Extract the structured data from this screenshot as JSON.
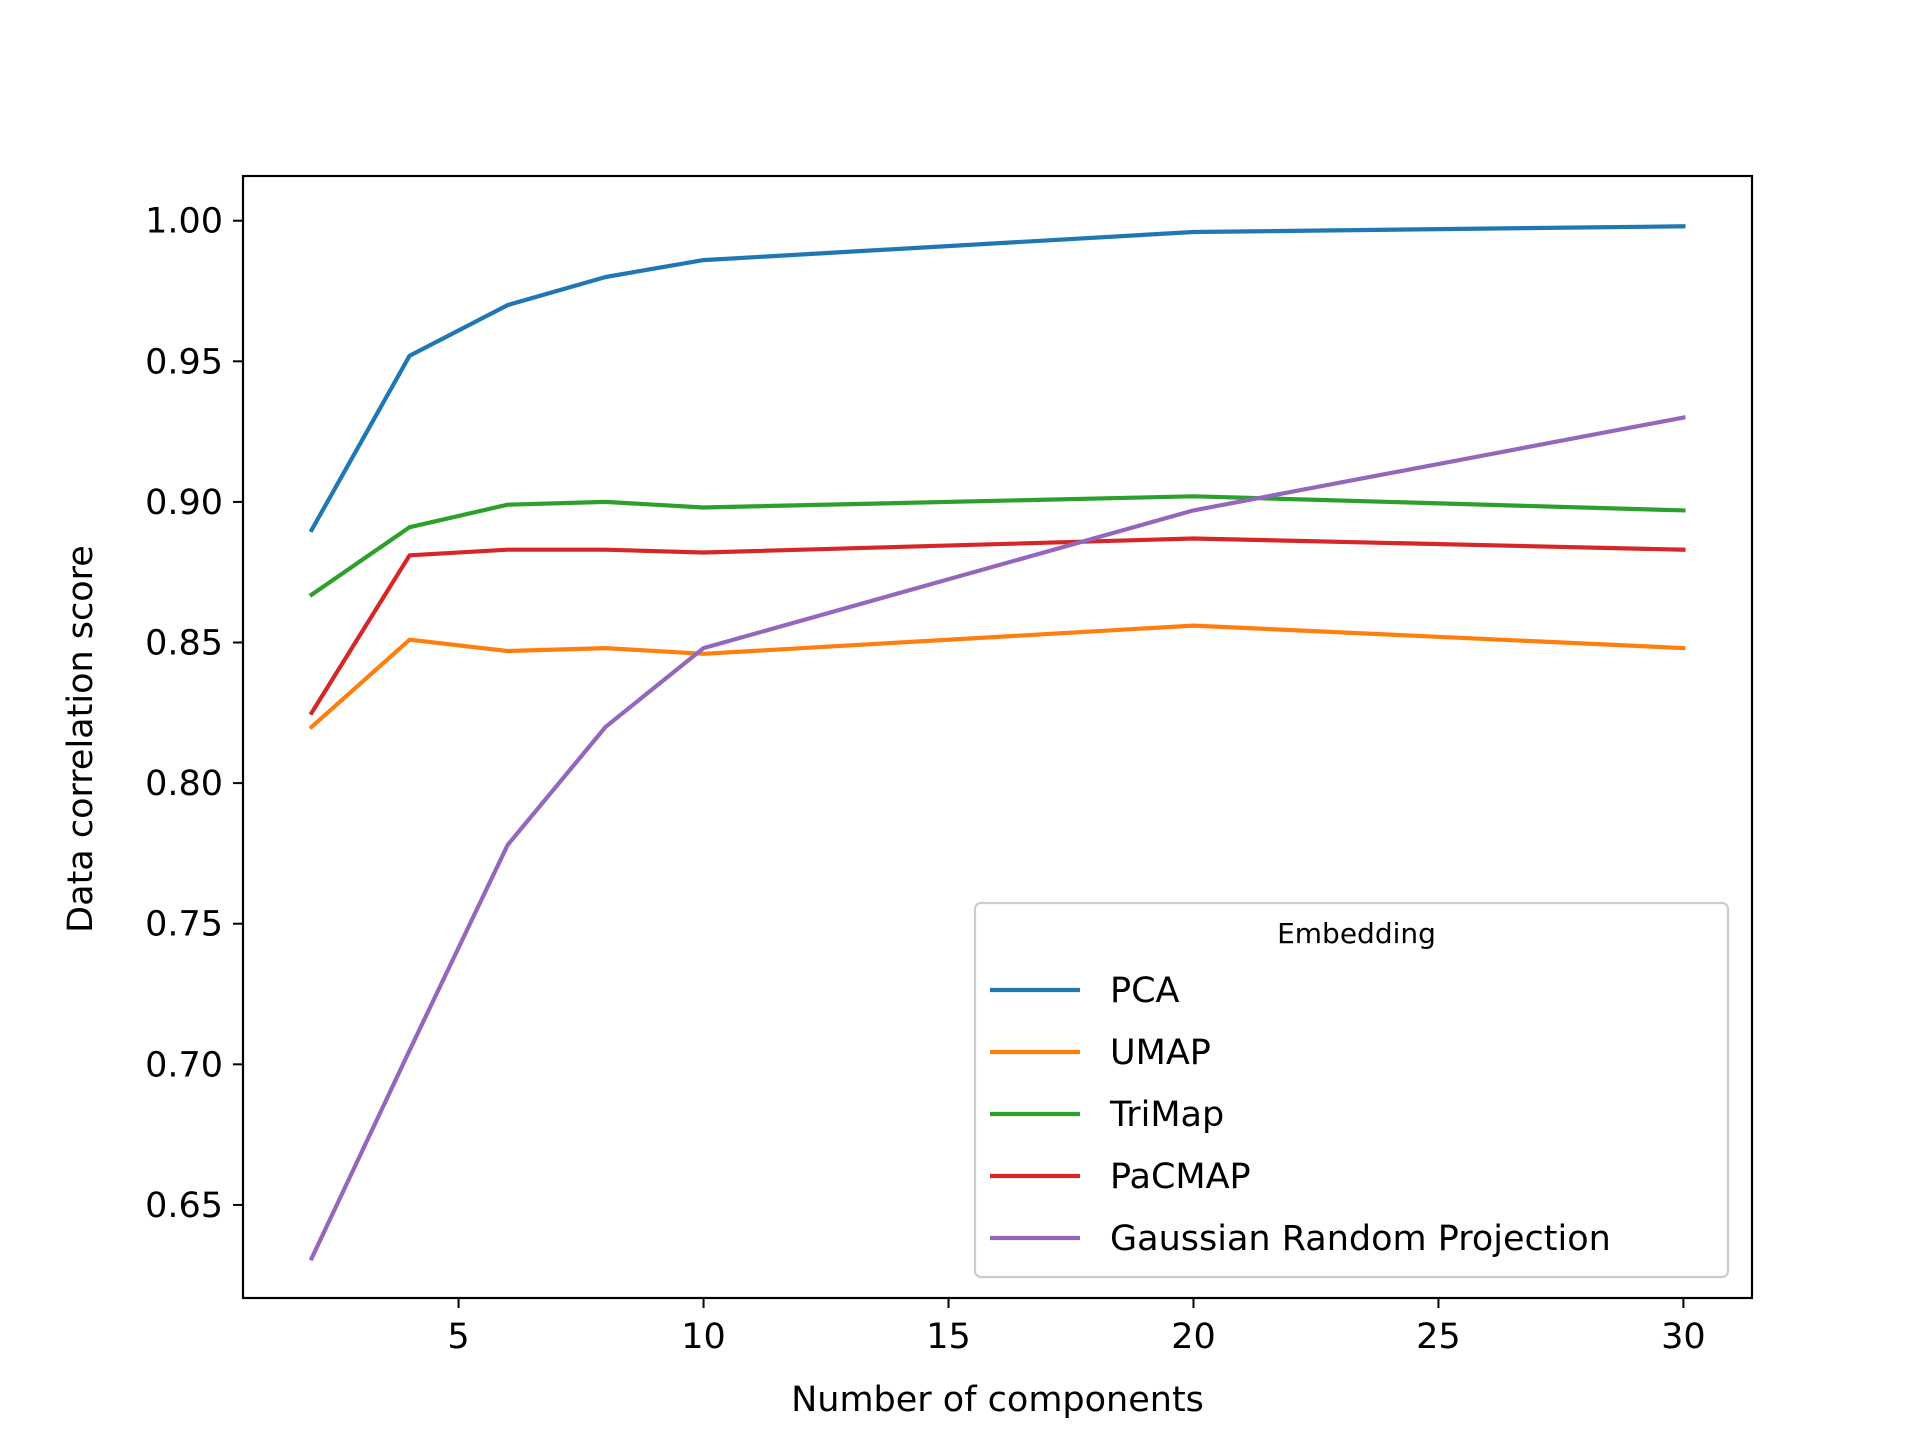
{
  "chart_data": {
    "type": "line",
    "xlabel": "Number of components",
    "ylabel": "Data correlation score",
    "xlim": [
      0.6,
      31.4
    ],
    "ylim": [
      0.6169,
      1.0159
    ],
    "xticks": [
      5,
      10,
      15,
      20,
      25,
      30
    ],
    "xtick_labels": [
      "5",
      "10",
      "15",
      "20",
      "25",
      "30"
    ],
    "yticks": [
      0.65,
      0.7,
      0.75,
      0.8,
      0.85,
      0.9,
      0.95,
      1.0
    ],
    "ytick_labels": [
      "0.65",
      "0.70",
      "0.75",
      "0.80",
      "0.85",
      "0.90",
      "0.95",
      "1.00"
    ],
    "grid": false,
    "legend": {
      "title": "Embedding",
      "placement": "lower-right"
    },
    "x": [
      2,
      4,
      6,
      8,
      10,
      20,
      30
    ],
    "series": [
      {
        "name": "PCA",
        "color": "#1f77b4",
        "values": [
          0.89,
          0.952,
          0.97,
          0.98,
          0.986,
          0.996,
          0.998
        ]
      },
      {
        "name": "UMAP",
        "color": "#ff7f0e",
        "values": [
          0.82,
          0.851,
          0.847,
          0.848,
          0.846,
          0.856,
          0.848
        ]
      },
      {
        "name": "TriMap",
        "color": "#2ca02c",
        "values": [
          0.867,
          0.891,
          0.899,
          0.9,
          0.898,
          0.902,
          0.897
        ]
      },
      {
        "name": "PaCMAP",
        "color": "#d62728",
        "values": [
          0.825,
          0.881,
          0.883,
          0.883,
          0.882,
          0.887,
          0.883
        ]
      },
      {
        "name": "Gaussian Random Projection",
        "color": "#9467bd",
        "values": [
          0.631,
          0.705,
          0.778,
          0.82,
          0.848,
          0.897,
          0.93
        ]
      }
    ]
  }
}
